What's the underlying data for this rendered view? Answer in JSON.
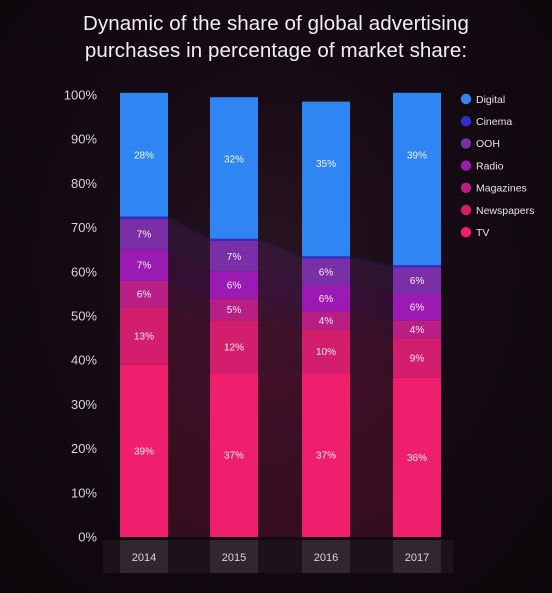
{
  "title_lines": [
    "Dynamic of the share of global advertising",
    "purchases in percentage of market share:"
  ],
  "chart_data": {
    "type": "bar",
    "stacked": true,
    "categories": [
      "2014",
      "2015",
      "2016",
      "2017"
    ],
    "series": [
      {
        "name": "TV",
        "color": "#ef1f6e",
        "values": [
          39,
          37,
          37,
          36
        ],
        "labels": [
          "39%",
          "37%",
          "37%",
          "36%"
        ]
      },
      {
        "name": "Newspapers",
        "color": "#d21e6c",
        "values": [
          13,
          12,
          10,
          9
        ],
        "labels": [
          "13%",
          "12%",
          "10%",
          "9%"
        ]
      },
      {
        "name": "Magazines",
        "color": "#b71f84",
        "values": [
          6,
          5,
          4,
          4
        ],
        "labels": [
          "6%",
          "5%",
          "4%",
          "4%"
        ]
      },
      {
        "name": "Radio",
        "color": "#9a1ab3",
        "values": [
          7,
          6,
          6,
          6
        ],
        "labels": [
          "7%",
          "6%",
          "6%",
          "6%"
        ]
      },
      {
        "name": "OOH",
        "color": "#7a2fa6",
        "values": [
          7,
          7,
          6,
          6
        ],
        "labels": [
          "7%",
          "7%",
          "6%",
          "6%"
        ]
      },
      {
        "name": "Cinema",
        "color": "#2f2fd0",
        "values": [
          0.5,
          0.5,
          0.5,
          0.5
        ],
        "labels": [
          "",
          "",
          "",
          ""
        ]
      },
      {
        "name": "Digital",
        "color": "#2f86f2",
        "values": [
          28,
          32,
          35,
          39
        ],
        "labels": [
          "28%",
          "32%",
          "35%",
          "39%"
        ]
      }
    ],
    "legend_order": [
      "Digital",
      "Cinema",
      "OOH",
      "Radio",
      "Magazines",
      "Newspapers",
      "TV"
    ],
    "legend_position": "top-right",
    "yticks": [
      "0%",
      "10%",
      "20%",
      "30%",
      "40%",
      "50%",
      "60%",
      "70%",
      "80%",
      "90%",
      "100%"
    ],
    "ylim": [
      0,
      100
    ],
    "grid": false,
    "xlabel": "",
    "ylabel": ""
  }
}
